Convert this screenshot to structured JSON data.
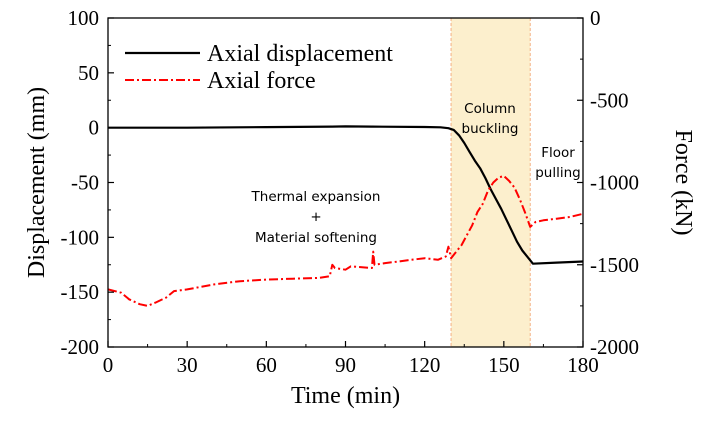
{
  "chart_data": {
    "type": "line",
    "xlabel": "Time (min)",
    "ylabel_left": "Displacement (mm)",
    "ylabel_right": "Force (kN)",
    "xlim": [
      0,
      180
    ],
    "ylim_left": [
      -200,
      100
    ],
    "ylim_right": [
      -2000,
      0
    ],
    "x_ticks": [
      "0",
      "30",
      "60",
      "90",
      "120",
      "150",
      "180"
    ],
    "y_left_ticks": [
      "100",
      "50",
      "0",
      "-50",
      "-100",
      "-150",
      "-200"
    ],
    "y_right_ticks": [
      "0",
      "-500",
      "-1000",
      "-1500",
      "-2000"
    ],
    "grid": false,
    "legend_position": "top-left",
    "colors": {
      "displacement": "#000000",
      "force": "#ff0000",
      "band": "#fcefcd",
      "band_edge": "#f4b183"
    },
    "shaded_region": {
      "x_start": 130,
      "x_end": 160
    },
    "annotations": {
      "thermal_1": "Thermal expansion",
      "thermal_2": "+",
      "thermal_3": "Material softening",
      "column_1": "Column",
      "column_2": "buckling",
      "floor_1": "Floor",
      "floor_2": "pulling"
    },
    "series": [
      {
        "name": "Axial displacement",
        "axis": "left",
        "style": "solid",
        "x": [
          0,
          30,
          60,
          85,
          90,
          100,
          120,
          126,
          129,
          131,
          133,
          135,
          137,
          139,
          141,
          143,
          145,
          147,
          149,
          151,
          153,
          155,
          157,
          159,
          161,
          170,
          180
        ],
        "y": [
          0,
          0,
          0.5,
          1,
          1.2,
          1,
          0.6,
          0.3,
          -0.5,
          -2,
          -7,
          -14,
          -22,
          -30,
          -37,
          -46,
          -56,
          -65,
          -74,
          -84,
          -94,
          -104,
          -112,
          -118,
          -124,
          -123,
          -122
        ]
      },
      {
        "name": "Axial force",
        "axis": "right",
        "style": "dash-dot",
        "x": [
          0,
          5,
          8,
          12,
          15,
          18,
          22,
          25,
          30,
          40,
          50,
          60,
          70,
          80,
          84,
          85,
          86,
          90,
          92,
          100,
          100.5,
          101,
          105,
          110,
          115,
          120,
          125,
          128,
          129,
          130,
          132,
          134,
          136,
          138,
          140,
          142,
          144,
          146,
          148,
          150,
          152,
          154,
          156,
          158,
          160,
          162,
          165,
          170,
          175,
          180
        ],
        "y": [
          -1650,
          -1670,
          -1710,
          -1740,
          -1750,
          -1730,
          -1700,
          -1660,
          -1650,
          -1620,
          -1600,
          -1590,
          -1585,
          -1580,
          -1570,
          -1500,
          -1520,
          -1530,
          -1510,
          -1520,
          -1420,
          -1500,
          -1490,
          -1480,
          -1470,
          -1460,
          -1470,
          -1450,
          -1390,
          -1460,
          -1420,
          -1380,
          -1320,
          -1260,
          -1180,
          -1130,
          -1050,
          -1000,
          -970,
          -960,
          -990,
          -1030,
          -1100,
          -1180,
          -1270,
          -1240,
          -1230,
          -1220,
          -1210,
          -1190
        ]
      }
    ]
  }
}
